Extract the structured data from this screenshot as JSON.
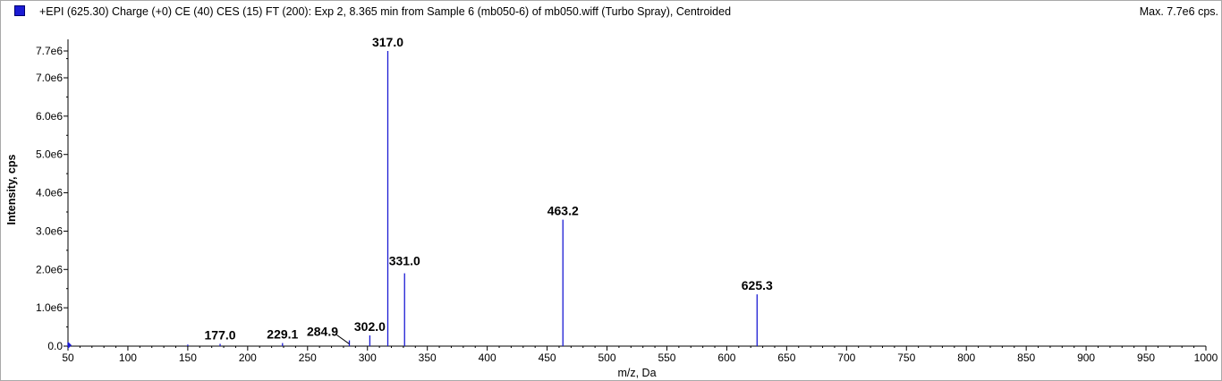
{
  "header": {
    "title": "+EPI (625.30) Charge (+0) CE (40) CES (15) FT (200): Exp 2, 8.365 min from Sample 6 (mb050-6) of mb050.wiff (Turbo Spray), Centroided",
    "max_label": "Max. 7.7e6 cps.",
    "series_color": "#1b1bd4"
  },
  "chart_data": {
    "type": "bar",
    "xlabel": "m/z, Da",
    "ylabel": "Intensity, cps",
    "xlim": [
      50,
      1000
    ],
    "ylim": [
      0,
      7700000.0
    ],
    "x_ticks": [
      "50",
      "100",
      "150",
      "200",
      "250",
      "300",
      "350",
      "400",
      "450",
      "500",
      "550",
      "600",
      "650",
      "700",
      "750",
      "800",
      "850",
      "900",
      "950",
      "1000"
    ],
    "y_ticks": [
      "0.0",
      "1.0e6",
      "2.0e6",
      "3.0e6",
      "4.0e6",
      "5.0e6",
      "6.0e6",
      "7.0e6",
      "7.7e6"
    ],
    "y_tick_values": [
      0,
      1000000.0,
      2000000.0,
      3000000.0,
      4000000.0,
      5000000.0,
      6000000.0,
      7000000.0,
      7700000.0
    ],
    "peaks": [
      {
        "mz": 50,
        "intensity": 90000
      },
      {
        "mz": 150,
        "intensity": 40000
      },
      {
        "mz": 177.0,
        "intensity": 60000,
        "label": "177.0"
      },
      {
        "mz": 229.1,
        "intensity": 80000,
        "label": "229.1"
      },
      {
        "mz": 284.9,
        "intensity": 150000,
        "label": "284.9"
      },
      {
        "mz": 302.0,
        "intensity": 280000,
        "label": "302.0"
      },
      {
        "mz": 317.0,
        "intensity": 7700000.0,
        "label": "317.0"
      },
      {
        "mz": 331.0,
        "intensity": 1900000.0,
        "label": "331.0"
      },
      {
        "mz": 463.2,
        "intensity": 3300000.0,
        "label": "463.2"
      },
      {
        "mz": 625.3,
        "intensity": 1350000.0,
        "label": "625.3"
      }
    ]
  }
}
